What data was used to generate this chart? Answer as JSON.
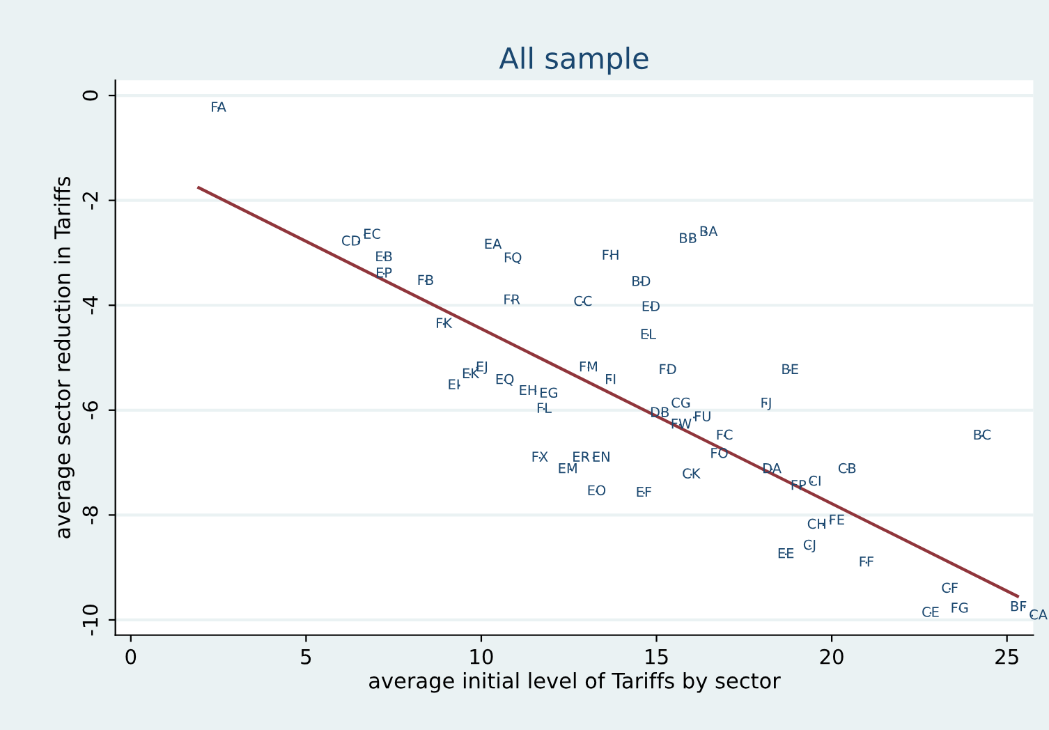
{
  "chart_data": {
    "type": "scatter",
    "title": "All sample",
    "xlabel": "average initial level of Tariffs by sector",
    "ylabel": "average sector reduction in Tariffs",
    "xlim": [
      -0.44,
      25.75
    ],
    "ylim": [
      -10.29,
      0.29
    ],
    "xticks": [
      0,
      5,
      10,
      15,
      20,
      25
    ],
    "yticks": [
      0,
      -2,
      -4,
      -6,
      -8,
      -10
    ],
    "grid": "y",
    "marker": "none",
    "legend": false,
    "series": [
      {
        "color": "#1a476f",
        "x": [
          2.5,
          6.67,
          6.5,
          7.22,
          7.22,
          8.41,
          8.93,
          10.4,
          10.83,
          10.87,
          12.9,
          13.69,
          14.56,
          14.84,
          14.76,
          15.99,
          16.39,
          13.06,
          13.69,
          15.32,
          18.81,
          18.13,
          15.91,
          15.16,
          16.07,
          15.67,
          16.94,
          16.79,
          24.29,
          18.29,
          20.44,
          19.13,
          19.44,
          15.99,
          13.29,
          14.64,
          12.54,
          13.0,
          13.2,
          11.67,
          9.88,
          9.68,
          9.37,
          10.67,
          11.55,
          11.71,
          11.79,
          19.96,
          19.76,
          19.37,
          18.69,
          20.99,
          23.37,
          22.82,
          23.65,
          25.5,
          25.72
        ],
        "values": [
          -0.24,
          -2.66,
          -2.79,
          -3.09,
          -3.4,
          -3.54,
          -4.36,
          -2.85,
          -3.11,
          -3.91,
          -3.94,
          -3.06,
          -3.56,
          -4.04,
          -4.57,
          -2.74,
          -2.61,
          -5.19,
          -5.43,
          -5.24,
          -5.24,
          -5.88,
          -5.88,
          -6.06,
          -6.14,
          -6.28,
          -6.49,
          -6.84,
          -6.49,
          -7.13,
          -7.13,
          -7.45,
          -7.37,
          -7.23,
          -7.55,
          -7.58,
          -7.13,
          -6.91,
          -6.91,
          -6.91,
          -5.19,
          -5.32,
          -5.53,
          -5.43,
          -5.64,
          -5.69,
          -5.98,
          -8.11,
          -8.19,
          -8.59,
          -8.75,
          -8.91,
          -9.41,
          -9.87,
          -9.79,
          -9.76,
          -9.92
        ],
        "value_labels": [
          "FA",
          "EC",
          "CD",
          "EB",
          "EP",
          "FB",
          "FK",
          "EA",
          "FQ",
          "FR",
          "CC",
          "FH",
          "BD",
          "ED",
          "EL",
          "BB",
          "BA",
          "FM",
          "FI",
          "FD",
          "BE",
          "FJ",
          "CG",
          "DB",
          "FU",
          "FW",
          "FC",
          "FO",
          "BC",
          "DA",
          "CB",
          "FP",
          "CI",
          "CK",
          "EO",
          "EF",
          "EM",
          "ER",
          "EN",
          "FX",
          "EJ",
          "EK",
          "EI",
          "EQ",
          "EH",
          "EG",
          "FL",
          "FE",
          "CH",
          "CJ",
          "EE",
          "FF",
          "CF",
          "CE",
          "FG",
          "BF",
          "CA"
        ]
      },
      {
        "type": "line",
        "color": "#90353b",
        "x": [
          1.94,
          25.3
        ],
        "values": [
          -1.76,
          -9.55
        ]
      }
    ]
  }
}
